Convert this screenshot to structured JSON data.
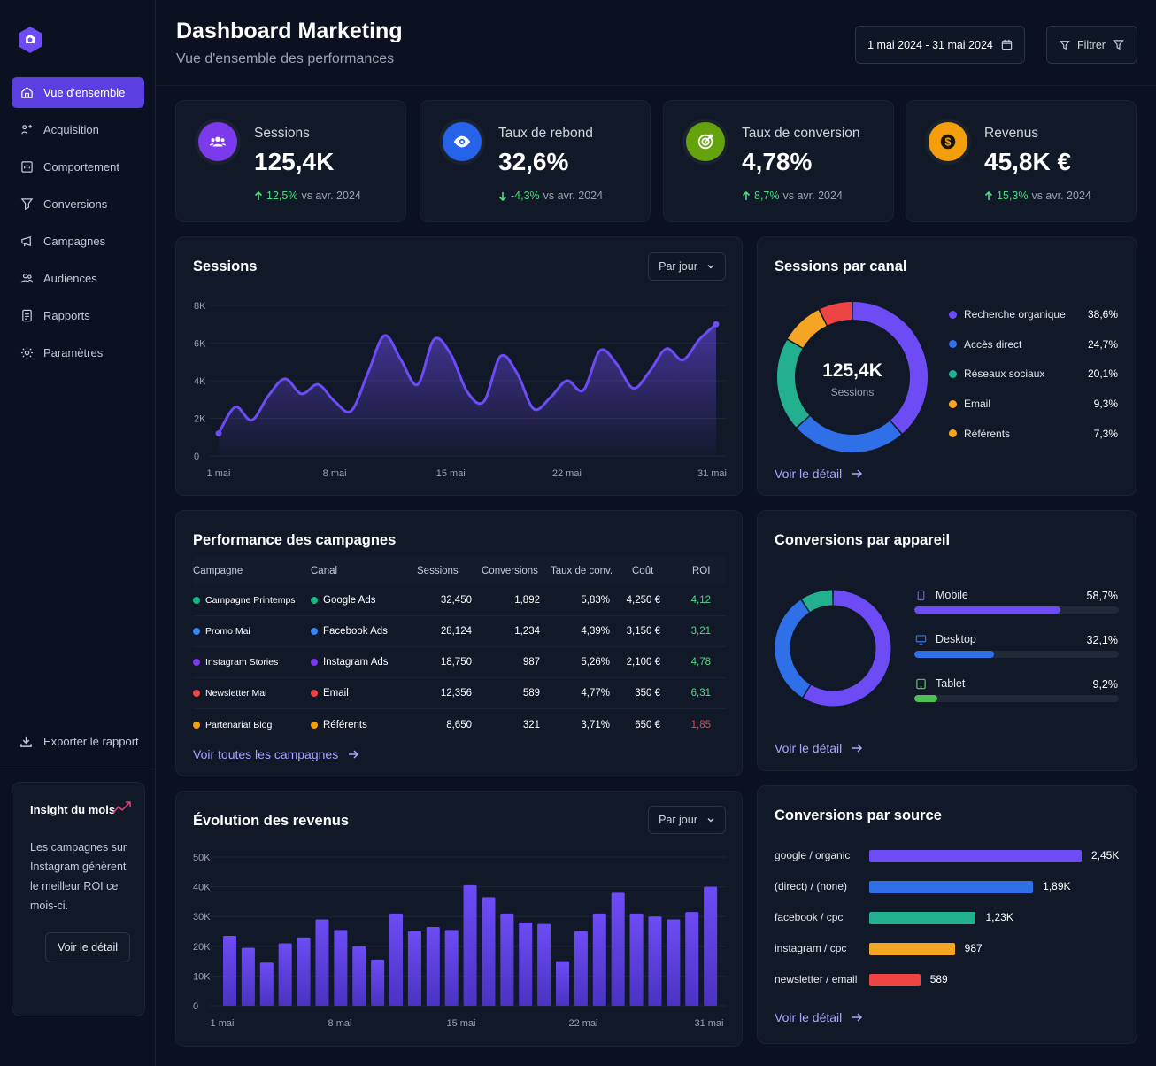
{
  "sidebar": {
    "items": [
      {
        "label": "Vue d'ensemble",
        "icon": "home-icon",
        "active": true
      },
      {
        "label": "Acquisition",
        "icon": "acquisition-icon"
      },
      {
        "label": "Comportement",
        "icon": "behavior-icon"
      },
      {
        "label": "Conversions",
        "icon": "conversions-icon"
      },
      {
        "label": "Campagnes",
        "icon": "campaigns-icon"
      },
      {
        "label": "Audiences",
        "icon": "audiences-icon"
      },
      {
        "label": "Rapports",
        "icon": "reports-icon"
      },
      {
        "label": "Paramètres",
        "icon": "gear-icon"
      }
    ],
    "export_label": "Exporter le rapport",
    "insight": {
      "title": "Insight du mois",
      "text": "Les campagnes sur Instagram génèrent le meilleur ROI ce mois-ci.",
      "button": "Voir le détail"
    }
  },
  "header": {
    "title": "Dashboard Marketing",
    "subtitle": "Vue d'ensemble des performances",
    "date_range": "1 mai 2024 - 31 mai 2024",
    "filter_label": "Filtrer"
  },
  "kpis": [
    {
      "label": "Sessions",
      "value": "125,4K",
      "delta": "12,5%",
      "compare": "vs avr. 2024",
      "direction": "up",
      "color": "#7c3aed",
      "icon": "users-icon"
    },
    {
      "label": "Taux de rebond",
      "value": "32,6%",
      "delta": "-4,3%",
      "compare": "vs avr. 2024",
      "direction": "down",
      "color": "#2563eb",
      "icon": "eye-icon"
    },
    {
      "label": "Taux de conversion",
      "value": "4,78%",
      "delta": "8,7%",
      "compare": "vs avr. 2024",
      "direction": "up",
      "color": "#65a30d",
      "icon": "target-icon"
    },
    {
      "label": "Revenus",
      "value": "45,8K €",
      "delta": "15,3%",
      "compare": "vs avr. 2024",
      "direction": "up",
      "color": "#f59e0b",
      "icon": "dollar-icon"
    }
  ],
  "sessions_chart": {
    "title": "Sessions",
    "period": "Par jour"
  },
  "channel": {
    "title": "Sessions par canal",
    "center_value": "125,4K",
    "center_label": "Sessions",
    "detail": "Voir le détail"
  },
  "campaigns": {
    "title": "Performance des campagnes",
    "headers": [
      "Campagne",
      "Canal",
      "Sessions",
      "Conversions",
      "Taux de conv.",
      "Coût",
      "ROI"
    ],
    "rows": [
      {
        "name": "Campagne Printemps",
        "channel": "Google Ads",
        "sessions": "32,450",
        "conversions": "1,892",
        "rate": "5,83%",
        "cost": "4,250 €",
        "roi": "4,12",
        "name_color": "#10b981",
        "channel_color": "#10b981",
        "roi_color": "#4ade80"
      },
      {
        "name": "Promo Mai",
        "channel": "Facebook Ads",
        "sessions": "28,124",
        "conversions": "1,234",
        "rate": "4,39%",
        "cost": "3,150 €",
        "roi": "3,21",
        "name_color": "#3b82f6",
        "channel_color": "#3b82f6",
        "roi_color": "#4ade80"
      },
      {
        "name": "Instagram Stories",
        "channel": "Instagram Ads",
        "sessions": "18,750",
        "conversions": "987",
        "rate": "5,26%",
        "cost": "2,100 €",
        "roi": "4,78",
        "name_color": "#7c3aed",
        "channel_color": "#7c3aed",
        "roi_color": "#4ade80"
      },
      {
        "name": "Newsletter Mai",
        "channel": "Email",
        "sessions": "12,356",
        "conversions": "589",
        "rate": "4,77%",
        "cost": "350 €",
        "roi": "6,31",
        "name_color": "#ef4444",
        "channel_color": "#ef4444",
        "roi_color": "#4ade80"
      },
      {
        "name": "Partenariat Blog",
        "channel": "Référents",
        "sessions": "8,650",
        "conversions": "321",
        "rate": "3,71%",
        "cost": "650 €",
        "roi": "1,85",
        "name_color": "#f59e0b",
        "channel_color": "#f59e0b",
        "roi_color": "#ef4444"
      }
    ],
    "link": "Voir toutes les campagnes"
  },
  "devices": {
    "title": "Conversions par appareil",
    "items": [
      {
        "label": "Mobile",
        "value": "58,7%",
        "fraction": 0.587,
        "color": "#6d4cf5",
        "icon": "mobile-icon"
      },
      {
        "label": "Desktop",
        "value": "32,1%",
        "fraction": 0.321,
        "color": "#2f6fe8",
        "icon": "desktop-icon"
      },
      {
        "label": "Tablet",
        "value": "9,2%",
        "fraction": 0.092,
        "color": "#4fbf55",
        "icon": "tablet-icon"
      }
    ],
    "detail": "Voir le détail"
  },
  "revenue_chart": {
    "title": "Évolution des revenus",
    "period": "Par jour"
  },
  "sources": {
    "title": "Conversions par source",
    "items": [
      {
        "label": "google / organic",
        "value": "2,45K",
        "amount": 2450,
        "color": "#6d4cf5"
      },
      {
        "label": "(direct) / (none)",
        "value": "1,89K",
        "amount": 1890,
        "color": "#2f6fe8"
      },
      {
        "label": "facebook / cpc",
        "value": "1,23K",
        "amount": 1230,
        "color": "#22b08f"
      },
      {
        "label": "instagram / cpc",
        "value": "987",
        "amount": 987,
        "color": "#f5a524"
      },
      {
        "label": "newsletter / email",
        "value": "589",
        "amount": 589,
        "color": "#ef4444"
      }
    ],
    "detail": "Voir le détail"
  },
  "chart_data": [
    {
      "type": "area",
      "title": "Sessions",
      "x_ticks": [
        "1 mai",
        "8 mai",
        "15 mai",
        "22 mai",
        "31 mai"
      ],
      "y_ticks": [
        "0",
        "2K",
        "4K",
        "6K",
        "8K"
      ],
      "ylim": [
        0,
        8000
      ],
      "x": [
        1,
        2,
        3,
        4,
        5,
        6,
        7,
        8,
        9,
        10,
        11,
        12,
        13,
        14,
        15,
        16,
        17,
        18,
        19,
        20,
        21,
        22,
        23,
        24,
        25,
        26,
        27,
        28,
        29,
        30,
        31
      ],
      "values": [
        1200,
        2600,
        1900,
        3200,
        4100,
        3300,
        3800,
        2900,
        2400,
        4400,
        6400,
        5100,
        3800,
        6200,
        5400,
        3400,
        2900,
        5300,
        4400,
        2500,
        3100,
        4000,
        3500,
        5600,
        4900,
        3600,
        4500,
        5700,
        5100,
        6200,
        7000
      ],
      "color": "#6d4cf5"
    },
    {
      "type": "pie",
      "title": "Sessions par canal",
      "labels": [
        "Recherche organique",
        "Accès direct",
        "Réseaux sociaux",
        "Email",
        "Référents"
      ],
      "values": [
        38.6,
        24.7,
        20.1,
        9.3,
        7.3
      ],
      "value_labels": [
        "38,6%",
        "24,7%",
        "20,1%",
        "9,3%",
        "7,3%"
      ],
      "colors": [
        "#6d4cf5",
        "#2f6fe8",
        "#22b08f",
        "#f5a524",
        "#ef4444"
      ],
      "legend_dots": [
        "#6d4cf5",
        "#2f6fe8",
        "#22b08f",
        "#f5a524",
        "#f5a524"
      ]
    },
    {
      "type": "pie",
      "title": "Conversions par appareil",
      "labels": [
        "Mobile",
        "Desktop",
        "Tablet"
      ],
      "values": [
        58.7,
        32.1,
        9.2
      ],
      "colors": [
        "#6d4cf5",
        "#2f6fe8",
        "#22b08f"
      ]
    },
    {
      "type": "bar",
      "title": "Évolution des revenus",
      "x_ticks": [
        "1 mai",
        "8 mai",
        "15 mai",
        "22 mai",
        "31 mai"
      ],
      "y_ticks": [
        "0",
        "10K",
        "20K",
        "30K",
        "40K",
        "50K"
      ],
      "ylim": [
        0,
        50000
      ],
      "values": [
        23500,
        19500,
        14500,
        21000,
        23000,
        29000,
        25500,
        20000,
        15500,
        31000,
        25000,
        26500,
        25500,
        40500,
        36500,
        31000,
        28000,
        27500,
        15000,
        25000,
        31000,
        38000,
        31000,
        30000,
        29000,
        31500,
        40000
      ],
      "color": "#5b3fe0"
    }
  ]
}
